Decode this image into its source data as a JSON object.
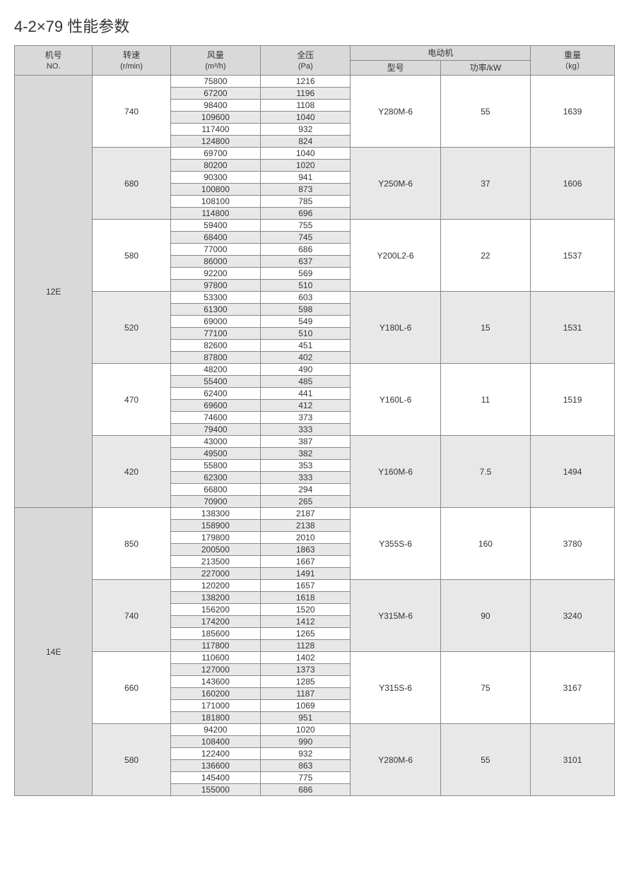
{
  "title": "4-2×79 性能参数",
  "headers": {
    "no": "机号",
    "no_sub": "NO.",
    "speed": "转速",
    "speed_sub": "(r/min)",
    "flow": "风量",
    "flow_sub": "(m³/h)",
    "pressure": "全压",
    "pressure_sub": "(Pa)",
    "motor": "电动机",
    "model": "型号",
    "power": "功率/kW",
    "weight": "重量",
    "weight_sub": "（kg）"
  },
  "colors": {
    "header_bg": "#d9d9d9",
    "alt_bg": "#e8e8e8",
    "white_bg": "#ffffff",
    "border": "#888888",
    "text": "#333333"
  },
  "models": [
    {
      "no": "12E",
      "groups": [
        {
          "speed": "740",
          "motor": "Y280M-6",
          "power": "55",
          "weight": "1639",
          "shade": "white",
          "rows": [
            [
              "75800",
              "1216"
            ],
            [
              "67200",
              "1196"
            ],
            [
              "98400",
              "1108"
            ],
            [
              "109600",
              "1040"
            ],
            [
              "117400",
              "932"
            ],
            [
              "124800",
              "824"
            ]
          ]
        },
        {
          "speed": "680",
          "motor": "Y250M-6",
          "power": "37",
          "weight": "1606",
          "shade": "alt",
          "rows": [
            [
              "69700",
              "1040"
            ],
            [
              "80200",
              "1020"
            ],
            [
              "90300",
              "941"
            ],
            [
              "100800",
              "873"
            ],
            [
              "108100",
              "785"
            ],
            [
              "114800",
              "696"
            ]
          ]
        },
        {
          "speed": "580",
          "motor": "Y200L2-6",
          "power": "22",
          "weight": "1537",
          "shade": "white",
          "rows": [
            [
              "59400",
              "755"
            ],
            [
              "68400",
              "745"
            ],
            [
              "77000",
              "686"
            ],
            [
              "86000",
              "637"
            ],
            [
              "92200",
              "569"
            ],
            [
              "97800",
              "510"
            ]
          ]
        },
        {
          "speed": "520",
          "motor": "Y180L-6",
          "power": "15",
          "weight": "1531",
          "shade": "alt",
          "rows": [
            [
              "53300",
              "603"
            ],
            [
              "61300",
              "598"
            ],
            [
              "69000",
              "549"
            ],
            [
              "77100",
              "510"
            ],
            [
              "82600",
              "451"
            ],
            [
              "87800",
              "402"
            ]
          ]
        },
        {
          "speed": "470",
          "motor": "Y160L-6",
          "power": "11",
          "weight": "1519",
          "shade": "white",
          "rows": [
            [
              "48200",
              "490"
            ],
            [
              "55400",
              "485"
            ],
            [
              "62400",
              "441"
            ],
            [
              "69600",
              "412"
            ],
            [
              "74600",
              "373"
            ],
            [
              "79400",
              "333"
            ]
          ]
        },
        {
          "speed": "420",
          "motor": "Y160M-6",
          "power": "7.5",
          "weight": "1494",
          "shade": "alt",
          "rows": [
            [
              "43000",
              "387"
            ],
            [
              "49500",
              "382"
            ],
            [
              "55800",
              "353"
            ],
            [
              "62300",
              "333"
            ],
            [
              "66800",
              "294"
            ],
            [
              "70900",
              "265"
            ]
          ]
        }
      ]
    },
    {
      "no": "14E",
      "groups": [
        {
          "speed": "850",
          "motor": "Y355S-6",
          "power": "160",
          "weight": "3780",
          "shade": "white",
          "rows": [
            [
              "138300",
              "2187"
            ],
            [
              "158900",
              "2138"
            ],
            [
              "179800",
              "2010"
            ],
            [
              "200500",
              "1863"
            ],
            [
              "213500",
              "1667"
            ],
            [
              "227000",
              "1491"
            ]
          ]
        },
        {
          "speed": "740",
          "motor": "Y315M-6",
          "power": "90",
          "weight": "3240",
          "shade": "alt",
          "rows": [
            [
              "120200",
              "1657"
            ],
            [
              "138200",
              "1618"
            ],
            [
              "156200",
              "1520"
            ],
            [
              "174200",
              "1412"
            ],
            [
              "185600",
              "1265"
            ],
            [
              "117800",
              "1128"
            ]
          ]
        },
        {
          "speed": "660",
          "motor": "Y315S-6",
          "power": "75",
          "weight": "3167",
          "shade": "white",
          "rows": [
            [
              "110600",
              "1402"
            ],
            [
              "127000",
              "1373"
            ],
            [
              "143600",
              "1285"
            ],
            [
              "160200",
              "1187"
            ],
            [
              "171000",
              "1069"
            ],
            [
              "181800",
              "951"
            ]
          ]
        },
        {
          "speed": "580",
          "motor": "Y280M-6",
          "power": "55",
          "weight": "3101",
          "shade": "alt",
          "rows": [
            [
              "94200",
              "1020"
            ],
            [
              "108400",
              "990"
            ],
            [
              "122400",
              "932"
            ],
            [
              "136600",
              "863"
            ],
            [
              "145400",
              "775"
            ],
            [
              "155000",
              "686"
            ]
          ]
        }
      ]
    }
  ]
}
